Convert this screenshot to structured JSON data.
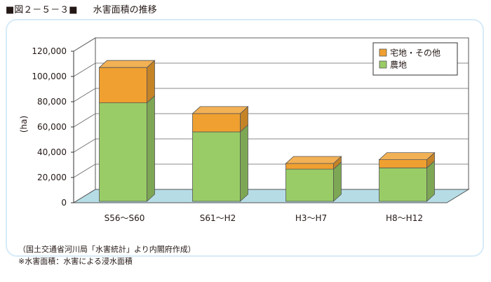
{
  "header": {
    "figure_label": "■図２－５－３■",
    "title": "水害面積の推移"
  },
  "notes": [
    "（国土交通省河川局「水害統計」より内閣府作成）",
    "※水害面積：水害による浸水面積"
  ],
  "chart_data": {
    "type": "bar",
    "stacked": true,
    "style": "3d",
    "categories": [
      "S56～S60",
      "S61～H2",
      "H3～H7",
      "H8～H12"
    ],
    "series": [
      {
        "name": "農地",
        "color": "#99cc66",
        "values": [
          78000,
          55000,
          25500,
          26500
        ]
      },
      {
        "name": "宅地・その他",
        "color": "#f0a030",
        "values": [
          28000,
          14500,
          4500,
          6500
        ]
      }
    ],
    "ylabel": "(ha)",
    "ylim": [
      0,
      120000
    ],
    "yticks": [
      0,
      20000,
      40000,
      60000,
      80000,
      100000,
      120000
    ],
    "ytick_labels": [
      "0",
      "20,000",
      "40,000",
      "60,000",
      "80,000",
      "100,000",
      "120,000"
    ],
    "floor_color": "#b6dde6",
    "grid": true,
    "legend_position": "top-right",
    "legend_order": [
      "宅地・その他",
      "農地"
    ]
  }
}
